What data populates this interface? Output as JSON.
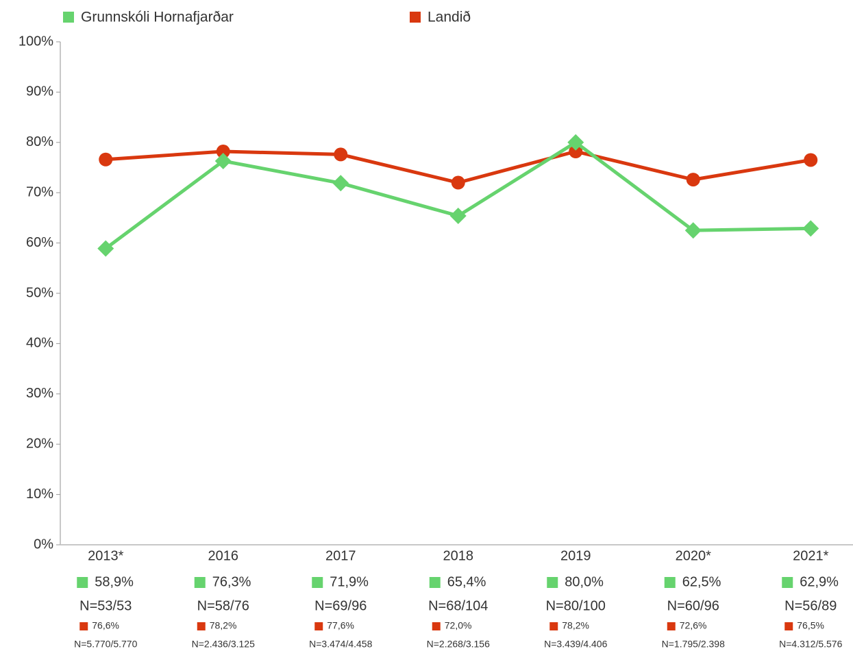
{
  "chart_data": {
    "type": "line",
    "categories": [
      "2013*",
      "2016",
      "2017",
      "2018",
      "2019",
      "2020*",
      "2021*"
    ],
    "series": [
      {
        "name": "Grunnskóli Hornafjarðar",
        "color": "#66d36e",
        "marker": "diamond",
        "values": [
          58.9,
          76.3,
          71.9,
          65.4,
          80.0,
          62.5,
          62.9
        ],
        "value_labels": [
          "58,9%",
          "76,3%",
          "71,9%",
          "65,4%",
          "80,0%",
          "62,5%",
          "62,9%"
        ],
        "counts": [
          "N=53/53",
          "N=58/76",
          "N=69/96",
          "N=68/104",
          "N=80/100",
          "N=60/96",
          "N=56/89"
        ]
      },
      {
        "name": "Landið",
        "color": "#d9380f",
        "marker": "circle",
        "values": [
          76.6,
          78.2,
          77.6,
          72.0,
          78.2,
          72.6,
          76.5
        ],
        "value_labels": [
          "76,6%",
          "78,2%",
          "77,6%",
          "72,0%",
          "78,2%",
          "72,6%",
          "76,5%"
        ],
        "counts": [
          "N=5.770/5.770",
          "N=2.436/3.125",
          "N=3.474/4.458",
          "N=2.268/3.156",
          "N=3.439/4.406",
          "N=1.795/2.398",
          "N=4.312/5.576"
        ]
      }
    ],
    "ylim": [
      0,
      100
    ],
    "yticks": [
      {
        "value": 0,
        "label": "0%"
      },
      {
        "value": 10,
        "label": "10%"
      },
      {
        "value": 20,
        "label": "20%"
      },
      {
        "value": 30,
        "label": "30%"
      },
      {
        "value": 40,
        "label": "40%"
      },
      {
        "value": 50,
        "label": "50%"
      },
      {
        "value": 60,
        "label": "60%"
      },
      {
        "value": 70,
        "label": "70%"
      },
      {
        "value": 80,
        "label": "80%"
      },
      {
        "value": 90,
        "label": "90%"
      },
      {
        "value": 100,
        "label": "100%"
      }
    ],
    "grid": false,
    "legend": "top"
  }
}
